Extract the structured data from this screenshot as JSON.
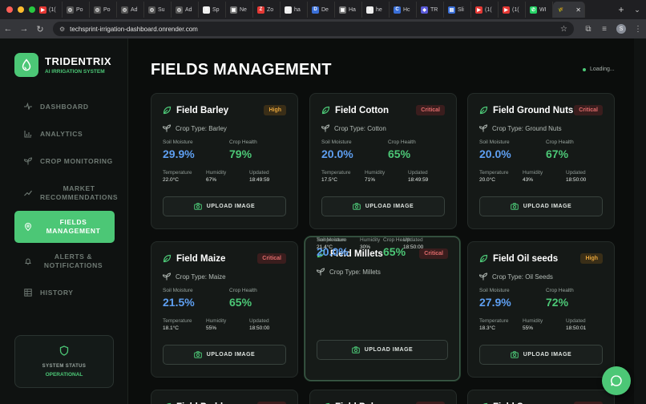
{
  "browser": {
    "tabs": [
      {
        "label": "(1(",
        "color": "#e53935",
        "glyph": "▶"
      },
      {
        "label": "Po",
        "color": "#555",
        "glyph": "◎"
      },
      {
        "label": "Po",
        "color": "#555",
        "glyph": "◎"
      },
      {
        "label": "Ad",
        "color": "#555",
        "glyph": "◎"
      },
      {
        "label": "Su",
        "color": "#555",
        "glyph": "◎"
      },
      {
        "label": "Ad",
        "color": "#555",
        "glyph": "◎"
      },
      {
        "label": "Sp",
        "color": "#eee",
        "glyph": "S"
      },
      {
        "label": "Ne",
        "color": "#777",
        "glyph": "▣"
      },
      {
        "label": "Zo",
        "color": "#e53935",
        "glyph": "Z"
      },
      {
        "label": "ha",
        "color": "#eee",
        "glyph": "G"
      },
      {
        "label": "De",
        "color": "#3a6fd8",
        "glyph": "D"
      },
      {
        "label": "Ha",
        "color": "#777",
        "glyph": "▣"
      },
      {
        "label": "he",
        "color": "#eee",
        "glyph": "●"
      },
      {
        "label": "Hc",
        "color": "#3a6fd8",
        "glyph": "C"
      },
      {
        "label": "TR",
        "color": "#5a5ad8",
        "glyph": "◆"
      },
      {
        "label": "Sli",
        "color": "#3a6fd8",
        "glyph": "▤"
      },
      {
        "label": "(1(",
        "color": "#e53935",
        "glyph": "▶"
      },
      {
        "label": "(1(",
        "color": "#e53935",
        "glyph": "▶"
      },
      {
        "label": "WI",
        "color": "#25d366",
        "glyph": "✆"
      }
    ],
    "active_tab_glyph": "🌾",
    "url": "techsprint-irrigation-dashboard.onrender.com",
    "profile_initial": "S"
  },
  "brand": {
    "name": "TRIDENTRIX",
    "subtitle": "AI IRRIGATION SYSTEM"
  },
  "nav": {
    "dashboard": "DASHBOARD",
    "analytics": "ANALYTICS",
    "crop_monitoring": "CROP MONITORING",
    "market_1": "MARKET",
    "market_2": "RECOMMENDATIONS",
    "fields_1": "FIELDS",
    "fields_2": "MANAGEMENT",
    "alerts_1": "ALERTS &",
    "alerts_2": "NOTIFICATIONS",
    "history": "HISTORY"
  },
  "status": {
    "label": "SYSTEM STATUS",
    "value": "OPERATIONAL"
  },
  "page": {
    "title": "FIELDS MANAGEMENT",
    "loading": "Loading..."
  },
  "labels": {
    "crop_type_prefix": "Crop Type: ",
    "soil_moisture": "Soil Moisture",
    "crop_health": "Crop Health",
    "temperature": "Temperature",
    "humidity": "Humidity",
    "updated": "Updated",
    "upload": "UPLOAD IMAGE"
  },
  "colors": {
    "accent": "#4cc776",
    "moisture": "#5e9ff1",
    "high": "#e3a33a",
    "critical": "#e06b6b"
  },
  "fields": [
    {
      "name": "Field Barley",
      "status": "High",
      "crop": "Barley",
      "moisture": "29.9%",
      "health": "79%",
      "temperature": "22.0°C",
      "humidity": "67%",
      "updated": "18:49:59"
    },
    {
      "name": "Field Cotton",
      "status": "Critical",
      "crop": "Cotton",
      "moisture": "20.0%",
      "health": "65%",
      "temperature": "17.5°C",
      "humidity": "71%",
      "updated": "18:49:59"
    },
    {
      "name": "Field Ground Nuts",
      "status": "Critical",
      "crop": "Ground Nuts",
      "moisture": "20.0%",
      "health": "67%",
      "temperature": "20.0°C",
      "humidity": "43%",
      "updated": "18:50:00"
    },
    {
      "name": "Field Maize",
      "status": "Critical",
      "crop": "Maize",
      "moisture": "21.5%",
      "health": "65%",
      "temperature": "18.1°C",
      "humidity": "55%",
      "updated": "18:50:00"
    },
    {
      "name": "Field Millets",
      "status": "Critical",
      "crop": "Millets",
      "moisture": "20.0%",
      "health": "65%",
      "temperature": "21.4°C",
      "humidity": "30%",
      "updated": "18:50:00"
    },
    {
      "name": "Field Oil seeds",
      "status": "High",
      "crop": "Oil Seeds",
      "moisture": "27.9%",
      "health": "72%",
      "temperature": "18.3°C",
      "humidity": "55%",
      "updated": "18:50:01"
    },
    {
      "name": "Field Paddy",
      "status": "Critical"
    },
    {
      "name": "Field Pulses",
      "status": "Critical"
    },
    {
      "name": "Field Sugarcane",
      "status": "Critical"
    }
  ]
}
